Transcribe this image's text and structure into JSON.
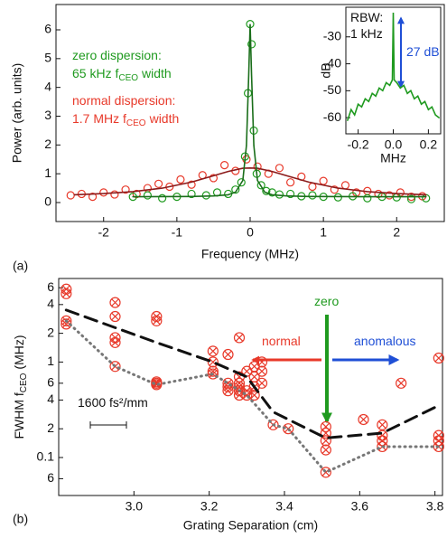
{
  "chart_data": [
    {
      "type": "scatter",
      "panel": "(a)",
      "ylabel": "Power (arb. units)",
      "xlabel": "Frequency (MHz)",
      "xlim": [
        -2.65,
        2.65
      ],
      "ylim": [
        -0.66,
        6.88
      ],
      "xticks": [
        -2,
        -1,
        0,
        1,
        2
      ],
      "yticks": [
        0,
        1,
        2,
        3,
        4,
        5,
        6
      ],
      "series": [
        {
          "style": "markers",
          "marker": "circle",
          "color": "#e8392a",
          "x": [
            -2.45,
            -2.3,
            -2.15,
            -2.0,
            -1.85,
            -1.7,
            -1.55,
            -1.4,
            -1.25,
            -1.1,
            -0.95,
            -0.8,
            -0.65,
            -0.5,
            -0.35,
            -0.2,
            -0.05,
            0.1,
            0.25,
            0.4,
            0.55,
            0.7,
            0.85,
            1.0,
            1.15,
            1.3,
            1.45,
            1.6,
            1.75,
            1.9,
            2.05,
            2.2,
            2.35
          ],
          "values": [
            0.25,
            0.3,
            0.2,
            0.35,
            0.28,
            0.45,
            0.3,
            0.5,
            0.65,
            0.55,
            0.8,
            0.62,
            0.95,
            0.85,
            1.3,
            1.1,
            1.5,
            1.25,
            1.0,
            1.2,
            0.7,
            0.9,
            0.55,
            0.75,
            0.45,
            0.6,
            0.35,
            0.4,
            0.3,
            0.25,
            0.35,
            0.2,
            0.22
          ]
        },
        {
          "style": "markers",
          "marker": "circle",
          "color": "#1f9a1f",
          "x": [
            -1.6,
            -1.4,
            -1.2,
            -1.0,
            -0.8,
            -0.6,
            -0.45,
            -0.3,
            -0.2,
            -0.12,
            -0.07,
            -0.03,
            0,
            0.02,
            0.05,
            0.09,
            0.15,
            0.22,
            0.3,
            0.4,
            0.55,
            0.7,
            0.85,
            1.0,
            1.2,
            1.4,
            1.6,
            1.8,
            2.0,
            2.2,
            2.4
          ],
          "values": [
            0.2,
            0.25,
            0.15,
            0.2,
            0.3,
            0.25,
            0.35,
            0.3,
            0.45,
            0.7,
            1.6,
            3.8,
            6.2,
            5.5,
            2.5,
            1.0,
            0.6,
            0.4,
            0.35,
            0.28,
            0.3,
            0.22,
            0.25,
            0.2,
            0.18,
            0.22,
            0.15,
            0.2,
            0.18,
            0.12,
            0.15
          ]
        },
        {
          "style": "line",
          "color": "#8b1a1a",
          "x": [
            -2.4,
            -2,
            -1.6,
            -1.2,
            -0.8,
            -0.5,
            -0.3,
            -0.1,
            0,
            0.1,
            0.3,
            0.5,
            0.8,
            1.2,
            1.6,
            2,
            2.4
          ],
          "values": [
            0.27,
            0.31,
            0.38,
            0.5,
            0.71,
            0.93,
            1.08,
            1.19,
            1.2,
            1.19,
            1.08,
            0.93,
            0.71,
            0.5,
            0.38,
            0.31,
            0.27
          ]
        },
        {
          "style": "line",
          "color": "#1a6e1a",
          "x": [
            -1.6,
            -0.8,
            -0.5,
            -0.3,
            -0.2,
            -0.1,
            -0.05,
            -0.02,
            0,
            0.02,
            0.05,
            0.1,
            0.2,
            0.3,
            0.5,
            0.8,
            1.6,
            2.4
          ],
          "values": [
            0.2,
            0.21,
            0.23,
            0.27,
            0.36,
            0.77,
            1.98,
            4.4,
            6.2,
            4.4,
            1.98,
            0.77,
            0.36,
            0.27,
            0.23,
            0.21,
            0.2,
            0.2
          ]
        }
      ],
      "annotations": [
        {
          "text": "zero dispersion:",
          "color": "#1f9a1f"
        },
        {
          "text": "65 kHz f",
          "sub": "CEO",
          "after": "width",
          "color": "#1f9a1f"
        },
        {
          "text": "normal dispersion:",
          "color": "#e8392a"
        },
        {
          "text": "1.7 MHz f",
          "sub": "CEO",
          "after": "width",
          "color": "#e8392a"
        }
      ]
    },
    {
      "type": "line",
      "ylabel": "dB",
      "xlabel": "MHz",
      "xlim": [
        -0.27,
        0.27
      ],
      "ylim": [
        -66,
        -19
      ],
      "xticks": [
        -0.2,
        {
          "value": 0,
          "label": "0.0"
        },
        0.2
      ],
      "yticks": [
        -30,
        -40,
        -50,
        -60
      ],
      "series": [
        {
          "style": "line",
          "color": "#1f9a1f",
          "x": [
            -0.26,
            -0.24,
            -0.22,
            -0.2,
            -0.18,
            -0.16,
            -0.14,
            -0.12,
            -0.1,
            -0.08,
            -0.06,
            -0.04,
            -0.02,
            -0.005,
            0,
            0.005,
            0.02,
            0.04,
            0.06,
            0.08,
            0.1,
            0.12,
            0.14,
            0.16,
            0.18,
            0.2,
            0.22,
            0.24,
            0.26
          ],
          "values": [
            -61,
            -57,
            -59,
            -55,
            -56,
            -53,
            -54,
            -51,
            -52,
            -49,
            -50,
            -47,
            -48,
            -46,
            -21,
            -46,
            -47,
            -49,
            -48,
            -51,
            -50,
            -53,
            -52,
            -55,
            -54,
            -57,
            -56,
            -59,
            -60
          ]
        }
      ],
      "annotations": [
        {
          "text": "RBW:",
          "color": "#111111"
        },
        {
          "text": "1 kHz",
          "color": "#111111"
        },
        {
          "text": "27 dB",
          "color": "#1f4fd6"
        }
      ]
    },
    {
      "type": "scatter",
      "panel": "(b)",
      "log_y": true,
      "ylabel": {
        "text": "FWHM f",
        "sub": "CEO",
        "after": "(MHz)"
      },
      "xlabel": "Grating Separation (cm)",
      "xlim": [
        2.8,
        3.82
      ],
      "ylim": [
        0.04,
        7.5
      ],
      "xticks": [
        {
          "value": 3,
          "label": "3.0"
        },
        3.2,
        3.4,
        3.6,
        3.8
      ],
      "yticks": [
        6,
        4,
        2,
        1,
        {
          "value": 0.6,
          "label": "6"
        },
        {
          "value": 0.4,
          "label": "4"
        },
        {
          "value": 0.2,
          "label": "2"
        },
        0.1,
        {
          "value": 0.06,
          "label": "6"
        }
      ],
      "series": [
        {
          "style": "markers",
          "marker": "circle-x",
          "color": "#e8392a",
          "x": [
            2.82,
            2.82,
            2.82,
            2.82,
            2.95,
            2.95,
            2.95,
            2.95,
            2.95,
            3.06,
            3.06,
            3.06,
            3.06,
            3.06,
            3.21,
            3.21,
            3.21,
            3.21,
            3.25,
            3.25,
            3.25,
            3.25,
            3.28,
            3.28,
            3.28,
            3.28,
            3.28,
            3.28,
            3.3,
            3.3,
            3.3,
            3.32,
            3.32,
            3.32,
            3.32,
            3.34,
            3.34,
            3.34,
            3.37,
            3.41,
            3.51,
            3.51,
            3.51,
            3.51,
            3.51,
            3.61,
            3.66,
            3.66,
            3.66,
            3.66,
            3.71,
            3.81,
            3.81,
            3.81,
            3.81
          ],
          "values": [
            5.8,
            5.2,
            2.7,
            2.5,
            4.2,
            3.0,
            1.8,
            1.6,
            0.9,
            3.0,
            2.7,
            0.62,
            0.6,
            0.58,
            1.3,
            1.0,
            0.8,
            0.75,
            0.6,
            0.55,
            1.2,
            0.5,
            1.8,
            0.7,
            0.6,
            0.55,
            0.45,
            0.5,
            0.8,
            0.5,
            0.45,
            0.9,
            0.7,
            0.55,
            0.45,
            0.8,
            0.6,
            1.0,
            0.22,
            0.2,
            0.21,
            0.18,
            0.15,
            0.12,
            0.07,
            0.25,
            0.22,
            0.17,
            0.15,
            0.13,
            0.6,
            1.1,
            0.17,
            0.15,
            0.13
          ]
        },
        {
          "style": "dashed",
          "color": "#111111",
          "x": [
            2.82,
            3.06,
            3.21,
            3.3,
            3.37,
            3.51,
            3.66,
            3.81
          ],
          "values": [
            3.5,
            1.6,
            1.0,
            0.7,
            0.3,
            0.16,
            0.18,
            0.35
          ]
        },
        {
          "style": "dotted",
          "color": "#777777",
          "x": [
            2.82,
            2.95,
            3.06,
            3.21,
            3.3,
            3.37,
            3.41,
            3.51,
            3.66,
            3.81
          ],
          "values": [
            2.7,
            0.9,
            0.58,
            0.75,
            0.45,
            0.22,
            0.2,
            0.07,
            0.13,
            0.13
          ]
        }
      ],
      "annotations": [
        {
          "text": "zero",
          "color": "#1f9a1f"
        },
        {
          "text": "normal",
          "color": "#e8392a"
        },
        {
          "text": "anomalous",
          "color": "#1f4fd6"
        },
        {
          "text": "1600 fs²/mm",
          "color": "#111111"
        }
      ]
    }
  ]
}
